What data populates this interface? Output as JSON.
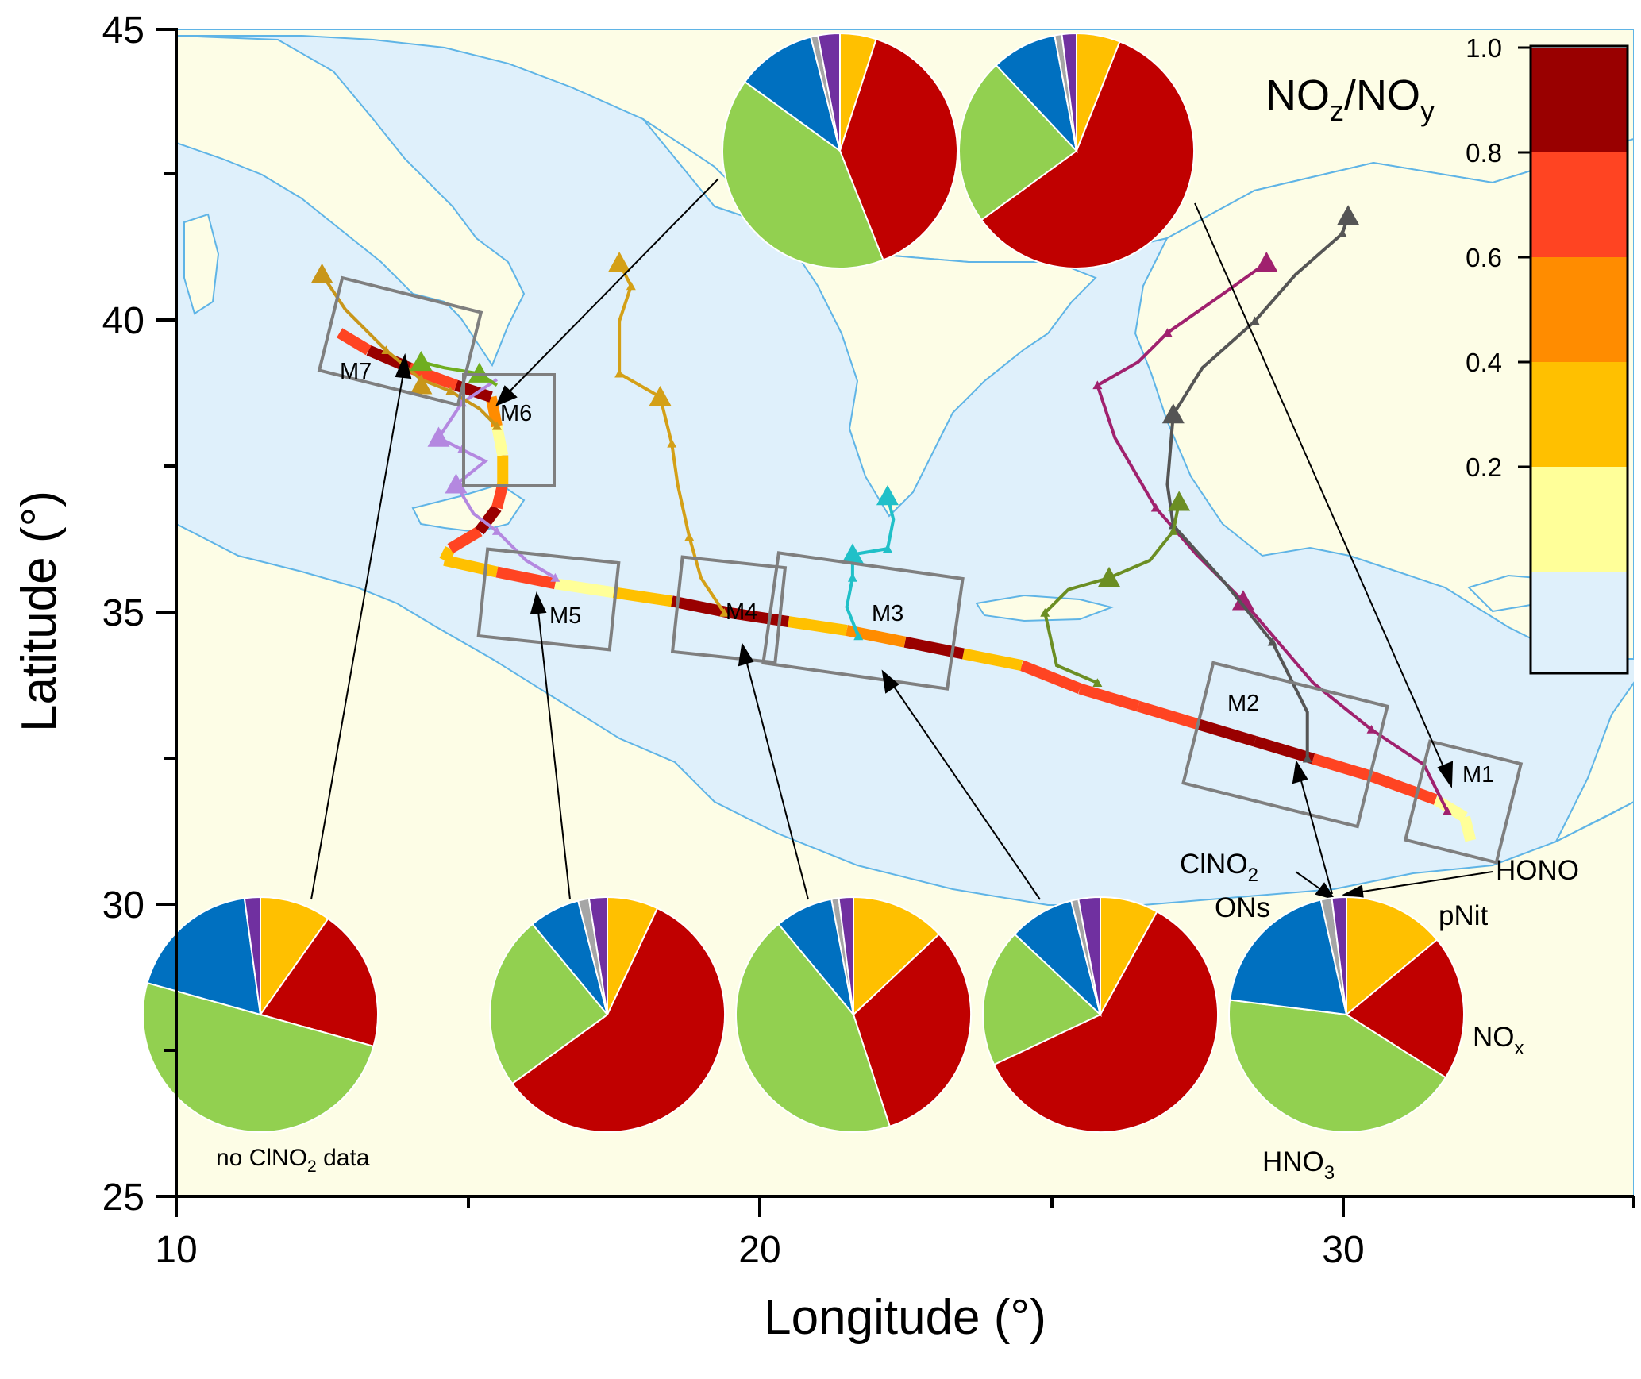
{
  "axes": {
    "x_title": "Longitude (°)",
    "y_title": "Latitude (°)",
    "x_ticks": [
      "10",
      "20",
      "30"
    ],
    "y_ticks": [
      "25",
      "30",
      "35",
      "40",
      "45"
    ],
    "x_range": [
      10,
      35
    ],
    "y_range": [
      25,
      45
    ]
  },
  "colorbar": {
    "title_main": "NO",
    "title_sub1": "z",
    "title_sep": "/NO",
    "title_sub2": "y",
    "ticks": [
      "0.2",
      "0.4",
      "0.6",
      "0.8",
      "1.0"
    ],
    "bands": [
      {
        "from": 0.0,
        "to": 0.2,
        "color": "#ffff99"
      },
      {
        "from": 0.2,
        "to": 0.4,
        "color": "#ffc000"
      },
      {
        "from": 0.4,
        "to": 0.6,
        "color": "#ff8c00"
      },
      {
        "from": 0.6,
        "to": 0.8,
        "color": "#ff4422"
      },
      {
        "from": 0.8,
        "to": 1.0,
        "color": "#990000"
      }
    ]
  },
  "colors": {
    "sea": "#dff0fb",
    "land": "#fdfde6",
    "coast": "#5fb4e6",
    "box": "#7f7f7f"
  },
  "pie_species": [
    {
      "name": "pNit",
      "label": "pNit",
      "color": "#ffc000"
    },
    {
      "name": "NOx",
      "label": "NO",
      "sub": "x",
      "color": "#c00000"
    },
    {
      "name": "HNO3",
      "label": "HNO",
      "sub": "3",
      "color": "#92d050"
    },
    {
      "name": "ONs",
      "label": "ONs",
      "color": "#0070c0"
    },
    {
      "name": "ClNO2",
      "label": "ClNO",
      "sub": "2",
      "color": "#a6a6a6"
    },
    {
      "name": "HONO",
      "label": "HONO",
      "color": "#7030a0"
    }
  ],
  "pies": [
    {
      "id": "M7",
      "fractions": [
        0.09,
        0.18,
        0.46,
        0.17,
        0.0,
        0.02
      ]
    },
    {
      "id": "M5",
      "fractions": [
        0.07,
        0.58,
        0.24,
        0.07,
        0.015,
        0.025
      ]
    },
    {
      "id": "M4",
      "fractions": [
        0.13,
        0.32,
        0.44,
        0.08,
        0.01,
        0.02
      ]
    },
    {
      "id": "M3",
      "fractions": [
        0.08,
        0.6,
        0.19,
        0.09,
        0.01,
        0.03
      ]
    },
    {
      "id": "M2",
      "fractions": [
        0.14,
        0.2,
        0.43,
        0.195,
        0.015,
        0.02
      ]
    },
    {
      "id": "M6",
      "fractions": [
        0.05,
        0.39,
        0.41,
        0.11,
        0.01,
        0.03
      ]
    },
    {
      "id": "M1",
      "fractions": [
        0.06,
        0.59,
        0.23,
        0.09,
        0.01,
        0.02
      ]
    }
  ],
  "box_labels": [
    "M1",
    "M2",
    "M3",
    "M4",
    "M5",
    "M6",
    "M7"
  ],
  "labels": {
    "no_clno2": "no ClNO",
    "no_clno2_sub": "2",
    "no_clno2_tail": " data"
  },
  "track_segments": [
    {
      "lon": 32.2,
      "lat": 31.1,
      "v": 0.1
    },
    {
      "lon": 32.1,
      "lat": 31.5,
      "v": 0.15
    },
    {
      "lon": 31.6,
      "lat": 31.8,
      "v": 0.7
    },
    {
      "lon": 30.5,
      "lat": 32.2,
      "v": 0.65
    },
    {
      "lon": 29.5,
      "lat": 32.5,
      "v": 0.85
    },
    {
      "lon": 28.5,
      "lat": 32.8,
      "v": 0.9
    },
    {
      "lon": 27.5,
      "lat": 33.1,
      "v": 0.7
    },
    {
      "lon": 26.5,
      "lat": 33.4,
      "v": 0.75
    },
    {
      "lon": 25.5,
      "lat": 33.7,
      "v": 0.65
    },
    {
      "lon": 24.5,
      "lat": 34.1,
      "v": 0.3
    },
    {
      "lon": 23.5,
      "lat": 34.3,
      "v": 0.9
    },
    {
      "lon": 22.5,
      "lat": 34.5,
      "v": 0.4
    },
    {
      "lon": 21.5,
      "lat": 34.7,
      "v": 0.3
    },
    {
      "lon": 20.5,
      "lat": 34.85,
      "v": 0.85
    },
    {
      "lon": 19.5,
      "lat": 35.0,
      "v": 0.9
    },
    {
      "lon": 18.5,
      "lat": 35.2,
      "v": 0.2
    },
    {
      "lon": 17.5,
      "lat": 35.35,
      "v": 0.15
    },
    {
      "lon": 16.5,
      "lat": 35.5,
      "v": 0.7
    },
    {
      "lon": 15.5,
      "lat": 35.7,
      "v": 0.2
    },
    {
      "lon": 14.6,
      "lat": 35.9,
      "v": 0.3
    },
    {
      "lon": 14.7,
      "lat": 36.1,
      "v": 0.7
    },
    {
      "lon": 15.2,
      "lat": 36.4,
      "v": 0.85
    },
    {
      "lon": 15.5,
      "lat": 36.8,
      "v": 0.65
    },
    {
      "lon": 15.6,
      "lat": 37.2,
      "v": 0.3
    },
    {
      "lon": 15.6,
      "lat": 37.7,
      "v": 0.15
    },
    {
      "lon": 15.5,
      "lat": 38.2,
      "v": 0.4
    },
    {
      "lon": 15.4,
      "lat": 38.7,
      "v": 0.9
    },
    {
      "lon": 14.8,
      "lat": 38.9,
      "v": 0.7
    },
    {
      "lon": 14.0,
      "lat": 39.2,
      "v": 0.85
    },
    {
      "lon": 13.3,
      "lat": 39.5,
      "v": 0.7
    },
    {
      "lon": 12.8,
      "lat": 39.8,
      "v": 0.75
    }
  ],
  "trajectories": [
    {
      "color": "#a0216e",
      "points": [
        [
          31.8,
          31.6
        ],
        [
          31.4,
          32.4
        ],
        [
          30.5,
          33.0
        ],
        [
          29.5,
          33.8
        ],
        [
          28.3,
          35.2
        ],
        [
          27.5,
          36.0
        ],
        [
          26.8,
          36.8
        ],
        [
          26.1,
          38.0
        ],
        [
          25.8,
          38.9
        ],
        [
          26.5,
          39.3
        ],
        [
          27.0,
          39.8
        ],
        [
          28.0,
          40.5
        ],
        [
          28.7,
          41.0
        ]
      ],
      "markers": [
        [
          28.7,
          41.0
        ],
        [
          28.3,
          35.2
        ]
      ]
    },
    {
      "color": "#555555",
      "points": [
        [
          29.4,
          32.5
        ],
        [
          29.4,
          33.3
        ],
        [
          28.8,
          34.5
        ],
        [
          28.0,
          35.5
        ],
        [
          27.1,
          36.5
        ],
        [
          27.0,
          37.2
        ],
        [
          27.1,
          38.4
        ],
        [
          27.6,
          39.2
        ],
        [
          28.5,
          40.0
        ],
        [
          29.2,
          40.8
        ],
        [
          30.0,
          41.5
        ],
        [
          30.1,
          41.8
        ]
      ],
      "markers": [
        [
          30.1,
          41.8
        ],
        [
          27.1,
          38.4
        ]
      ]
    },
    {
      "color": "#6b8e23",
      "points": [
        [
          25.8,
          33.8
        ],
        [
          25.1,
          34.1
        ],
        [
          24.9,
          35.0
        ],
        [
          25.3,
          35.4
        ],
        [
          26.0,
          35.6
        ],
        [
          26.7,
          35.9
        ],
        [
          27.1,
          36.4
        ],
        [
          27.2,
          36.9
        ]
      ],
      "markers": [
        [
          27.2,
          36.9
        ],
        [
          26.0,
          35.6
        ]
      ]
    },
    {
      "color": "#20c0c8",
      "points": [
        [
          21.7,
          34.6
        ],
        [
          21.5,
          35.1
        ],
        [
          21.6,
          35.6
        ],
        [
          21.6,
          36.0
        ],
        [
          22.2,
          36.1
        ],
        [
          22.3,
          36.6
        ],
        [
          22.2,
          37.0
        ]
      ],
      "markers": [
        [
          22.2,
          37.0
        ],
        [
          21.6,
          36.0
        ]
      ]
    },
    {
      "color": "#d4a017",
      "points": [
        [
          19.4,
          35.0
        ],
        [
          19.0,
          35.6
        ],
        [
          18.8,
          36.3
        ],
        [
          18.6,
          37.2
        ],
        [
          18.5,
          37.9
        ],
        [
          18.3,
          38.7
        ],
        [
          17.6,
          39.1
        ],
        [
          17.6,
          40.0
        ],
        [
          17.8,
          40.6
        ],
        [
          17.6,
          41.0
        ]
      ],
      "markers": [
        [
          17.6,
          41.0
        ],
        [
          18.3,
          38.7
        ]
      ]
    },
    {
      "color": "#b488e0",
      "points": [
        [
          16.5,
          35.6
        ],
        [
          16.0,
          35.9
        ],
        [
          15.5,
          36.4
        ],
        [
          15.1,
          36.7
        ],
        [
          14.8,
          37.2
        ],
        [
          15.3,
          37.6
        ],
        [
          14.9,
          37.8
        ],
        [
          14.5,
          38.0
        ],
        [
          14.9,
          38.6
        ],
        [
          15.5,
          39.0
        ]
      ],
      "markers": [
        [
          14.8,
          37.2
        ],
        [
          14.5,
          38.0
        ]
      ]
    },
    {
      "color": "#c8961a",
      "points": [
        [
          12.5,
          40.8
        ],
        [
          12.9,
          40.2
        ],
        [
          13.6,
          39.5
        ],
        [
          14.2,
          39.0
        ],
        [
          14.7,
          38.8
        ],
        [
          15.2,
          38.5
        ],
        [
          15.5,
          38.2
        ]
      ],
      "markers": [
        [
          12.5,
          40.8
        ],
        [
          14.2,
          38.9
        ]
      ]
    },
    {
      "color": "#6fae1f",
      "points": [
        [
          14.2,
          39.3
        ],
        [
          14.6,
          39.2
        ],
        [
          15.2,
          39.1
        ],
        [
          15.5,
          38.9
        ]
      ],
      "markers": [
        [
          14.2,
          39.3
        ],
        [
          15.2,
          39.1
        ]
      ]
    }
  ]
}
